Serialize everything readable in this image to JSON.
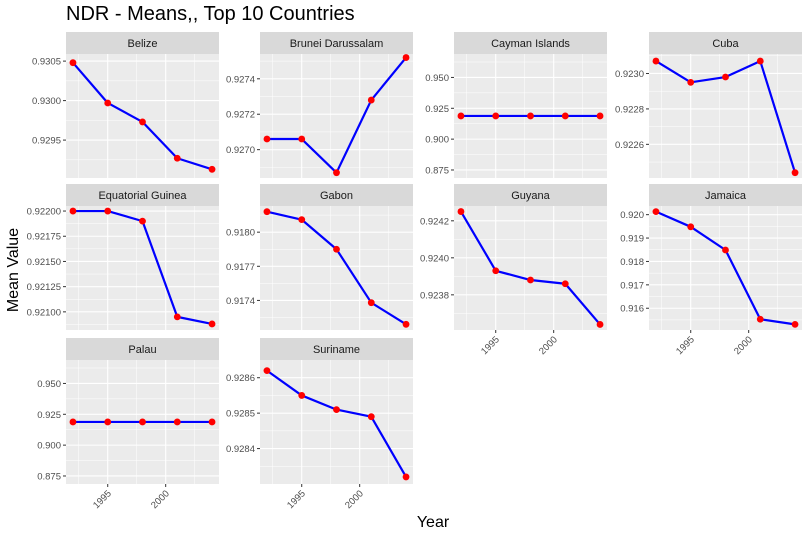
{
  "title": "NDR - Means,, Top 10 Countries",
  "xlabel": "Year",
  "ylabel": "Mean Value",
  "colors": {
    "line": "#0000FF",
    "point": "#FF0000",
    "panel_bg": "#EBEBEB",
    "strip_bg": "#D9D9D9",
    "grid": "#FFFFFF"
  },
  "chart_data": {
    "type": "line",
    "title": "NDR - Means,, Top 10 Countries",
    "xlabel": "Year",
    "ylabel": "Mean Value",
    "x": [
      1992,
      1995,
      1998,
      2001,
      2004
    ],
    "x_ticks": [
      "1995",
      "2000"
    ],
    "x_lim": [
      1991.4,
      2004.6
    ],
    "grid": true,
    "legend": "none",
    "panels": [
      {
        "name": "Belize",
        "values": [
          0.93048,
          0.92997,
          0.92973,
          0.92927,
          0.92913
        ],
        "ylim": [
          0.92902,
          0.93059
        ],
        "yticks": [
          "0.9295",
          "0.9300",
          "0.9305"
        ]
      },
      {
        "name": "Brunei Darussalam",
        "values": [
          0.92706,
          0.92706,
          0.92687,
          0.92728,
          0.92752
        ],
        "ylim": [
          0.92684,
          0.92754
        ],
        "yticks": [
          "0.9270",
          "0.9272",
          "0.9274"
        ]
      },
      {
        "name": "Cayman Islands",
        "values": [
          0.9188,
          0.9188,
          0.9188,
          0.9188,
          0.9188
        ],
        "ylim": [
          0.8685,
          0.969
        ],
        "yticks": [
          "0.875",
          "0.900",
          "0.925",
          "0.950"
        ]
      },
      {
        "name": "Cuba",
        "values": [
          0.92307,
          0.92295,
          0.92298,
          0.92307,
          0.92244
        ],
        "ylim": [
          0.92241,
          0.92311
        ],
        "yticks": [
          "0.9226",
          "0.9228",
          "0.9230"
        ]
      },
      {
        "name": "Equatorial Guinea",
        "values": [
          0.922,
          0.922,
          0.9219,
          0.92095,
          0.92088
        ],
        "ylim": [
          0.92082,
          0.92205
        ],
        "yticks": [
          "0.92100",
          "0.92125",
          "0.92150",
          "0.92175",
          "0.92200"
        ]
      },
      {
        "name": "Gabon",
        "values": [
          0.91818,
          0.91811,
          0.91785,
          0.91738,
          0.91719
        ],
        "ylim": [
          0.91714,
          0.91823
        ],
        "yticks": [
          "0.9174",
          "0.9177",
          "0.9180"
        ]
      },
      {
        "name": "Guyana",
        "values": [
          0.92425,
          0.92393,
          0.92388,
          0.92386,
          0.92364
        ],
        "ylim": [
          0.92361,
          0.92428
        ],
        "yticks": [
          "0.9238",
          "0.9240",
          "0.9242"
        ]
      },
      {
        "name": "Jamaica",
        "values": [
          0.92013,
          0.91948,
          0.91849,
          0.91553,
          0.91531
        ],
        "ylim": [
          0.91507,
          0.92037
        ],
        "yticks": [
          "0.916",
          "0.917",
          "0.918",
          "0.919",
          "0.920"
        ]
      },
      {
        "name": "Palau",
        "values": [
          0.9188,
          0.9188,
          0.9188,
          0.9188,
          0.9188
        ],
        "ylim": [
          0.8685,
          0.969
        ],
        "yticks": [
          "0.875",
          "0.900",
          "0.925",
          "0.950"
        ]
      },
      {
        "name": "Suriname",
        "values": [
          0.92862,
          0.92855,
          0.92851,
          0.92849,
          0.92832
        ],
        "ylim": [
          0.9283,
          0.92865
        ],
        "yticks": [
          "0.9284",
          "0.9285",
          "0.9286"
        ]
      }
    ]
  }
}
